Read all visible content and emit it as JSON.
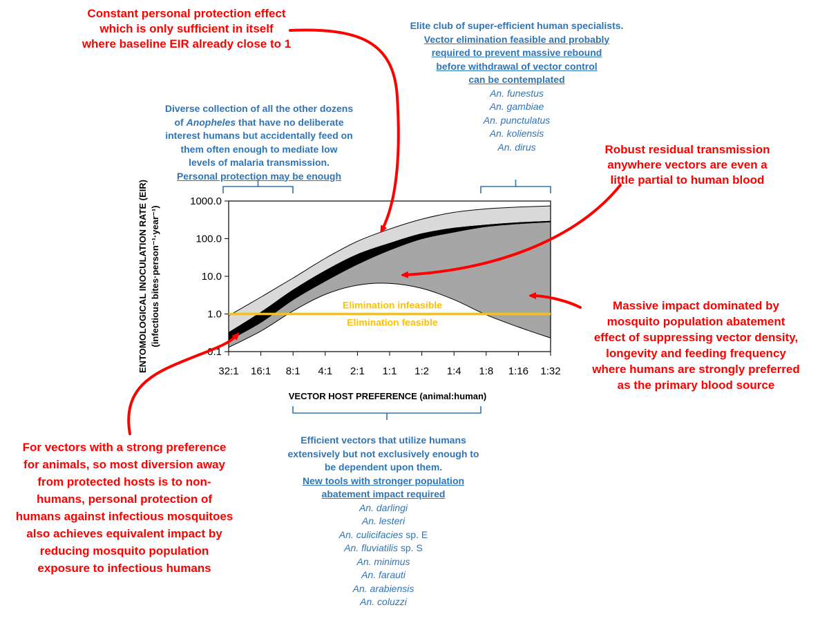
{
  "chart_data": {
    "type": "area",
    "x_scale": "log2",
    "y_scale": "log10",
    "categories": [
      "32:1",
      "16:1",
      "8:1",
      "4:1",
      "2:1",
      "1:1",
      "1:2",
      "1:4",
      "1:8",
      "1:16",
      "1:32"
    ],
    "ylim": [
      0.1,
      1000
    ],
    "y_ticks": [
      "1000.0",
      "100.0",
      "10.0",
      "1.0",
      "0.1"
    ],
    "xlabel": "VECTOR HOST PREFERENCE (animal:human)",
    "ylabel_line1": "ENTOMOLOGICAL INOCULATION RATE (EIR)",
    "ylabel_line2": "(infectious bites·person⁻¹·year⁻¹)",
    "series": [
      {
        "role": "upper",
        "values": [
          0.9,
          2.8,
          9,
          30,
          85,
          180,
          330,
          500,
          620,
          690,
          740
        ]
      },
      {
        "role": "black_top",
        "values": [
          0.32,
          1.1,
          4.3,
          14,
          38,
          75,
          135,
          190,
          230,
          265,
          290
        ]
      },
      {
        "role": "black_bottom",
        "values": [
          0.2,
          0.6,
          2.4,
          7.5,
          21,
          50,
          100,
          150,
          210,
          250,
          280
        ]
      },
      {
        "role": "lower",
        "values": [
          0.13,
          0.35,
          1.2,
          3.3,
          5.8,
          6.5,
          4.8,
          2.4,
          0.95,
          0.45,
          0.23
        ]
      }
    ],
    "threshold": {
      "value": 1.0,
      "label_above": "Elimination infeasible",
      "label_below": "Elimination feasible",
      "color": "#ffc000"
    },
    "colors": {
      "light": "#d9d9d9",
      "mid": "#a6a6a6",
      "dark": "#000000",
      "annotation_red": "#ff0000",
      "annotation_blue": "#2e75b6"
    }
  },
  "annotations": {
    "top_left_red": [
      "Constant personal protection effect",
      "which is only sufficient in itself",
      "where baseline EIR already close to 1"
    ],
    "top_right_blue": {
      "bold": "Elite club of super-efficient human specialists.",
      "underlined": [
        "Vector elimination feasible and probably",
        "required to prevent massive rebound",
        "before withdrawal of vector control",
        "can be contemplated"
      ],
      "species": [
        "An. funestus",
        "An. gambiae",
        "An. punctulatus",
        "An. koliensis",
        "An. dirus"
      ]
    },
    "mid_left_blue": {
      "line1": "Diverse collection of all the other dozens",
      "line2_pre": "of ",
      "line2_italic": "Anopheles",
      "line2_post": " that have no deliberate",
      "lines": [
        "interest humans but accidentally feed on",
        "them often enough to mediate low",
        "levels of malaria transmission."
      ],
      "underlined": "Personal protection may be enough"
    },
    "right_red_top": [
      "Robust residual transmission",
      "anywhere vectors are even a",
      "little partial to human blood"
    ],
    "right_red_mid": [
      "Massive impact dominated by",
      "mosquito population abatement",
      "effect of suppressing vector density,",
      "longevity and feeding frequency",
      "where humans are strongly preferred",
      "as the primary blood source"
    ],
    "bottom_left_red": [
      "For vectors with a strong preference",
      "for animals, so most diversion away",
      "from protected hosts is to non-",
      "humans, personal protection of",
      "humans against infectious mosquitoes",
      "also achieves equivalent impact by",
      "reducing mosquito population",
      "exposure to infectious humans"
    ],
    "bottom_blue": {
      "bold": [
        "Efficient vectors that utilize humans",
        "extensively but not exclusively enough to",
        "be dependent upon them."
      ],
      "underlined": [
        "New tools with stronger population",
        "abatement impact required"
      ],
      "species": [
        {
          "italic": "An. darlingi",
          "suffix": ""
        },
        {
          "italic": "An. lesteri",
          "suffix": ""
        },
        {
          "italic": "An. culicifacies",
          "suffix": " sp. E"
        },
        {
          "italic": "An. fluviatilis",
          "suffix": " sp. S"
        },
        {
          "italic": "An. minimus",
          "suffix": ""
        },
        {
          "italic": "An. farauti",
          "suffix": ""
        },
        {
          "italic": "An. arabiensis",
          "suffix": ""
        },
        {
          "italic": "An. coluzzi",
          "suffix": ""
        }
      ]
    }
  }
}
